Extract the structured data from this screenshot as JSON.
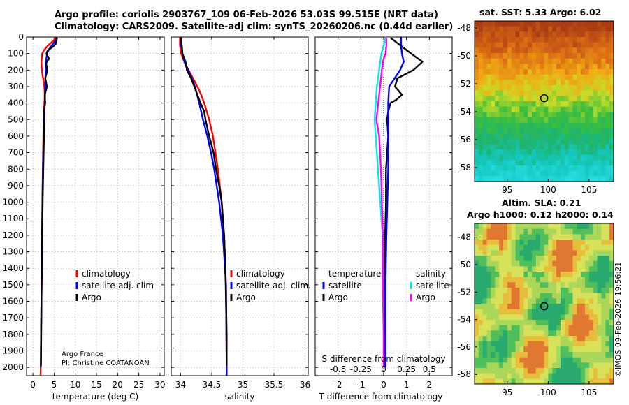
{
  "header": {
    "line1": "Argo profile: coriolis 2903767_109 06-Feb-2026 53.03S 99.515E (NRT data)",
    "line2": "Climatology: CARS2009. Satellite-adj clim: synTS_20260206.nc (0.44d earlier)"
  },
  "attribution": {
    "program": "Argo France",
    "pi": "PI: Christine COATANOAN",
    "stamp": "©IMOS 09-Feb-2026 19:56:21"
  },
  "colors": {
    "climatology": "#ff0000",
    "satellite": "#0000ff",
    "argo": "#000000",
    "sat_temp_diff": "#00e8e8",
    "sat_sal_diff": "#ff00ff",
    "grid": "#c0c0c0"
  },
  "depth_axis": {
    "ylim": [
      0,
      2050
    ],
    "ticks": [
      "0",
      "100",
      "200",
      "300",
      "400",
      "500",
      "600",
      "700",
      "800",
      "900",
      "1000",
      "1100",
      "1200",
      "1300",
      "1400",
      "1500",
      "1600",
      "1700",
      "1800",
      "1900",
      "2000"
    ]
  },
  "chart_data": [
    {
      "id": "temperature",
      "type": "line",
      "xlabel": "temperature (deg C)",
      "xlim": [
        -1.5,
        31
      ],
      "xticks": [
        "0",
        "5",
        "10",
        "15",
        "20",
        "25",
        "30"
      ],
      "legend": {
        "placement": "lower-right",
        "entries": [
          "climatology",
          "satellite-adj. clim",
          "Argo"
        ]
      },
      "series": [
        {
          "name": "climatology",
          "depth": [
            0,
            20,
            50,
            80,
            100,
            150,
            200,
            250,
            300,
            350,
            400,
            500,
            700,
            1000,
            1500,
            2000,
            2050
          ],
          "values": [
            5.2,
            5.0,
            3.6,
            2.6,
            2.2,
            2.0,
            2.1,
            2.4,
            2.7,
            2.8,
            2.7,
            2.55,
            2.4,
            2.25,
            2.05,
            1.85,
            1.8
          ]
        },
        {
          "name": "satellite-adj. clim",
          "depth": [
            0,
            20,
            50,
            80,
            100,
            150,
            200,
            300,
            400,
            500,
            700,
            1000,
            1500,
            2000
          ],
          "values": [
            5.6,
            5.4,
            4.5,
            3.7,
            3.3,
            3.1,
            3.0,
            2.9,
            2.8,
            2.65,
            2.45,
            2.25,
            2.05,
            1.85
          ]
        },
        {
          "name": "Argo",
          "depth": [
            5,
            20,
            40,
            60,
            80,
            100,
            130,
            160,
            200,
            250,
            300,
            350,
            400,
            450,
            500,
            600,
            800,
            1000,
            1200,
            1400,
            1600,
            1800,
            1990
          ],
          "values": [
            5.7,
            5.6,
            5.4,
            4.7,
            3.5,
            3.2,
            3.8,
            3.1,
            3.4,
            2.9,
            3.3,
            2.8,
            2.9,
            2.6,
            2.7,
            2.6,
            2.45,
            2.3,
            2.2,
            2.1,
            2.0,
            1.95,
            1.9
          ]
        }
      ]
    },
    {
      "id": "salinity",
      "type": "line",
      "xlabel": "salinity",
      "xlim": [
        33.85,
        36.05
      ],
      "xticks": [
        "34",
        "34.5",
        "35",
        "35.5",
        "36"
      ],
      "legend": {
        "placement": "lower-right",
        "entries": [
          "climatology",
          "satellite-adj. clim.",
          "Argo"
        ]
      },
      "series": [
        {
          "name": "climatology",
          "depth": [
            0,
            50,
            100,
            150,
            200,
            250,
            300,
            350,
            400,
            500,
            600,
            800,
            1000,
            1200,
            1500,
            2000,
            2050
          ],
          "values": [
            33.99,
            33.99,
            34.01,
            34.06,
            34.13,
            34.2,
            34.27,
            34.33,
            34.38,
            34.46,
            34.52,
            34.6,
            34.66,
            34.7,
            34.73,
            34.74,
            34.74
          ]
        },
        {
          "name": "satellite-adj. clim",
          "depth": [
            0,
            50,
            100,
            150,
            200,
            250,
            300,
            400,
            500,
            600,
            700,
            800,
            1000,
            1200,
            1500,
            2000,
            2050
          ],
          "values": [
            34.0,
            34.01,
            34.03,
            34.06,
            34.12,
            34.18,
            34.23,
            34.3,
            34.36,
            34.43,
            34.49,
            34.54,
            34.62,
            34.68,
            34.73,
            34.74,
            34.74
          ]
        },
        {
          "name": "Argo",
          "depth": [
            5,
            50,
            100,
            150,
            200,
            250,
            300,
            350,
            400,
            450,
            500,
            600,
            700,
            800,
            900,
            1000,
            1200,
            1400,
            1600,
            1800,
            1990
          ],
          "values": [
            34.0,
            34.02,
            34.03,
            34.08,
            34.1,
            34.17,
            34.22,
            34.27,
            34.32,
            34.38,
            34.4,
            34.46,
            34.53,
            34.57,
            34.62,
            34.66,
            34.7,
            34.72,
            34.73,
            34.74,
            34.74
          ]
        }
      ]
    },
    {
      "id": "differences",
      "type": "line",
      "xlabel": "T difference from climatology",
      "xlabel_top": "S difference from climatology",
      "xlim": [
        -3,
        3
      ],
      "xticks": [
        "-2",
        "-1",
        "0",
        "1",
        "2"
      ],
      "xlim_top": [
        -0.75,
        0.75
      ],
      "xticks_top": [
        "-0.5",
        "-0.25",
        "0",
        "0.25",
        "0.5"
      ],
      "legend_temperature": {
        "title": "temperature",
        "entries": [
          "satellite",
          "Argo"
        ]
      },
      "legend_salinity": {
        "title": "salinity",
        "entries": [
          "satellite",
          "Argo"
        ]
      },
      "series": [
        {
          "name": "satellite T diff",
          "color_key": "sat_temp_diff",
          "depth": [
            0,
            50,
            100,
            200,
            300,
            400,
            500,
            600,
            700,
            800,
            1000,
            1200,
            1500,
            1800,
            2000
          ],
          "values": [
            0.1,
            0.0,
            -0.1,
            -0.2,
            -0.3,
            -0.35,
            -0.4,
            -0.35,
            -0.3,
            -0.25,
            -0.15,
            -0.05,
            0.0,
            0.0,
            0.0
          ]
        },
        {
          "name": "Argo T diff",
          "color_key": "argo",
          "depth": [
            5,
            100,
            150,
            200,
            250,
            300,
            350,
            380,
            400,
            450,
            500,
            600,
            700,
            800,
            1000,
            1300,
            1600,
            2000
          ],
          "values": [
            0.3,
            1.2,
            1.7,
            1.3,
            0.6,
            0.5,
            0.8,
            0.55,
            0.3,
            0.2,
            0.15,
            0.2,
            0.15,
            0.1,
            0.1,
            0.05,
            0.05,
            0.05
          ]
        },
        {
          "name": "satellite S diff",
          "color_key": "satellite",
          "depth": [
            0,
            50,
            100,
            150,
            200,
            300,
            400,
            500,
            600,
            800,
            1000,
            1200,
            1500,
            1800,
            2000
          ],
          "values": [
            0.19,
            0.19,
            0.2,
            0.22,
            0.18,
            0.06,
            0.05,
            0.05,
            0.05,
            0.05,
            0.04,
            0.03,
            0.02,
            0.02,
            0.02
          ]
        },
        {
          "name": "Argo S diff",
          "color_key": "sat_sal_diff",
          "depth": [
            5,
            50,
            100,
            150,
            200,
            300,
            400,
            500,
            600,
            800,
            1000,
            1200,
            1500,
            1800,
            2000
          ],
          "values": [
            0.03,
            0.03,
            0.02,
            -0.01,
            -0.02,
            -0.04,
            -0.06,
            -0.08,
            -0.05,
            -0.03,
            -0.02,
            -0.01,
            -0.01,
            0.0,
            0.0
          ]
        }
      ]
    }
  ],
  "maps": {
    "sst": {
      "title": "sat. SST: 5.33 Argo: 6.02",
      "xticks": [
        "95",
        "100",
        "105"
      ],
      "yticks": [
        "-48",
        "-50",
        "-52",
        "-54",
        "-56",
        "-58"
      ],
      "lon_range": [
        91,
        108
      ],
      "lat_range": [
        -59,
        -47.5
      ],
      "marker": {
        "lon": 99.515,
        "lat": -53.03
      }
    },
    "sla": {
      "title_line1": "Altim. SLA: 0.21",
      "title_line2": "Argo h1000: 0.12 h2000: 0.14",
      "xticks": [
        "95",
        "100",
        "105"
      ],
      "yticks": [
        "-48",
        "-50",
        "-52",
        "-54",
        "-56",
        "-58"
      ],
      "lon_range": [
        91,
        108
      ],
      "lat_range": [
        -58.7,
        -47
      ],
      "marker": {
        "lon": 99.515,
        "lat": -53.03
      }
    }
  }
}
